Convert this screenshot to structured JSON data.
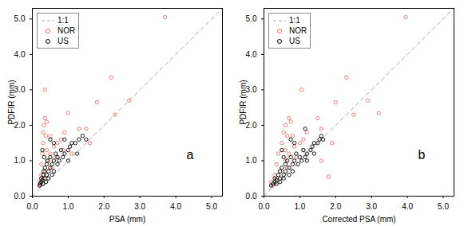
{
  "chart_data": [
    {
      "type": "scatter",
      "x_label": "PSA (mm)",
      "y_label": "PDFIR (mm)",
      "annotation": "a",
      "xlim": [
        0,
        5.3
      ],
      "ylim": [
        0,
        5.3
      ],
      "xticks": [
        0,
        1,
        2,
        3,
        4,
        5
      ],
      "yticks": [
        0,
        1,
        2,
        3,
        4,
        5
      ],
      "legend": "upper left",
      "series": [
        {
          "name": "1:1",
          "type": "line",
          "line_style": "dashed",
          "color": "#aaaaaa",
          "x": [
            0,
            5.3
          ],
          "values": [
            0,
            5.3
          ]
        },
        {
          "name": "NOR",
          "type": "scatter",
          "marker": "circle",
          "color": "#e8746b",
          "x": [
            0.2,
            0.25,
            0.25,
            0.28,
            0.3,
            0.3,
            0.32,
            0.35,
            0.35,
            0.38,
            0.4,
            0.4,
            0.45,
            0.5,
            0.5,
            0.55,
            0.6,
            0.65,
            0.7,
            0.8,
            0.85,
            0.9,
            1.0,
            1.1,
            1.3,
            1.5,
            1.6,
            1.8,
            2.2,
            2.3,
            2.7,
            3.7,
            0.22,
            0.3,
            0.35
          ],
          "values": [
            0.4,
            0.6,
            0.9,
            1.2,
            1.5,
            1.8,
            2.0,
            3.0,
            2.2,
            1.7,
            1.3,
            2.1,
            1.0,
            1.2,
            1.7,
            0.8,
            1.4,
            1.1,
            1.5,
            1.6,
            1.3,
            1.8,
            2.35,
            1.2,
            1.9,
            1.9,
            1.5,
            2.65,
            3.35,
            2.3,
            2.7,
            5.05,
            0.3,
            0.5,
            0.7
          ]
        },
        {
          "name": "US",
          "type": "scatter",
          "marker": "circle",
          "color": "#000000",
          "x": [
            0.2,
            0.22,
            0.25,
            0.25,
            0.28,
            0.3,
            0.3,
            0.32,
            0.35,
            0.35,
            0.38,
            0.4,
            0.4,
            0.42,
            0.45,
            0.45,
            0.5,
            0.5,
            0.55,
            0.55,
            0.6,
            0.6,
            0.65,
            0.7,
            0.7,
            0.75,
            0.8,
            0.85,
            0.9,
            1.0,
            1.05,
            1.1,
            1.2,
            1.3,
            1.4,
            1.5,
            0.28,
            0.33,
            0.5,
            0.6,
            0.9,
            1.0,
            1.25
          ],
          "values": [
            0.3,
            0.35,
            0.4,
            0.5,
            0.45,
            0.6,
            0.35,
            0.7,
            0.5,
            0.8,
            0.4,
            0.6,
            0.9,
            1.0,
            0.7,
            0.5,
            0.8,
            1.1,
            0.6,
            0.9,
            1.0,
            0.7,
            1.2,
            0.9,
            1.1,
            1.0,
            1.3,
            1.1,
            1.2,
            1.3,
            1.4,
            1.5,
            1.5,
            1.6,
            1.7,
            1.6,
            1.3,
            1.1,
            1.6,
            1.5,
            1.6,
            1.0,
            1.2
          ]
        }
      ]
    },
    {
      "type": "scatter",
      "x_label": "Corrected PSA (mm)",
      "y_label": "PDFIR (mm)",
      "annotation": "b",
      "xlim": [
        0,
        5.3
      ],
      "ylim": [
        0,
        5.3
      ],
      "xticks": [
        0,
        1,
        2,
        3,
        4,
        5
      ],
      "yticks": [
        0,
        1,
        2,
        3,
        4,
        5
      ],
      "legend": "upper left",
      "series": [
        {
          "name": "1:1",
          "type": "line",
          "line_style": "dashed",
          "color": "#aaaaaa",
          "x": [
            0,
            5.3
          ],
          "values": [
            0,
            5.3
          ]
        },
        {
          "name": "NOR",
          "type": "scatter",
          "marker": "circle",
          "color": "#e8746b",
          "x": [
            0.2,
            0.3,
            0.35,
            0.4,
            0.5,
            0.55,
            0.6,
            1.05,
            0.7,
            0.65,
            0.6,
            0.75,
            0.6,
            0.7,
            0.8,
            0.65,
            0.85,
            0.9,
            1.0,
            1.1,
            1.1,
            1.2,
            1.5,
            1.6,
            1.6,
            1.8,
            1.9,
            2.0,
            2.3,
            2.5,
            2.9,
            3.2,
            3.95,
            0.25,
            0.35,
            0.45
          ],
          "values": [
            0.4,
            0.6,
            0.9,
            1.2,
            1.5,
            1.8,
            2.0,
            3.0,
            2.2,
            1.7,
            1.3,
            2.1,
            1.0,
            1.2,
            1.7,
            0.8,
            1.4,
            1.1,
            1.5,
            1.6,
            1.3,
            1.8,
            2.2,
            1.0,
            1.9,
            0.55,
            1.5,
            2.65,
            3.35,
            2.3,
            2.7,
            2.35,
            5.05,
            0.3,
            0.5,
            0.7
          ]
        },
        {
          "name": "US",
          "type": "scatter",
          "marker": "circle",
          "color": "#000000",
          "x": [
            0.2,
            0.25,
            0.3,
            0.3,
            0.35,
            0.4,
            0.35,
            0.45,
            0.45,
            0.5,
            0.45,
            0.55,
            0.6,
            0.65,
            0.6,
            0.55,
            0.7,
            0.75,
            0.7,
            0.8,
            0.85,
            0.8,
            0.9,
            0.95,
            1.0,
            1.05,
            1.1,
            1.15,
            1.2,
            1.3,
            1.35,
            1.4,
            1.5,
            1.55,
            1.6,
            1.65,
            0.5,
            0.55,
            0.75,
            0.85,
            1.15,
            1.2,
            1.4
          ],
          "values": [
            0.3,
            0.35,
            0.4,
            0.5,
            0.45,
            0.6,
            0.35,
            0.7,
            0.5,
            0.8,
            0.4,
            0.6,
            0.9,
            1.0,
            0.7,
            0.5,
            0.8,
            1.1,
            0.6,
            0.9,
            1.0,
            0.7,
            1.2,
            0.9,
            1.1,
            1.0,
            1.3,
            1.1,
            1.2,
            1.3,
            1.4,
            1.5,
            1.5,
            1.6,
            1.7,
            1.6,
            1.3,
            1.1,
            1.6,
            1.5,
            1.9,
            1.0,
            1.2
          ]
        }
      ]
    }
  ]
}
